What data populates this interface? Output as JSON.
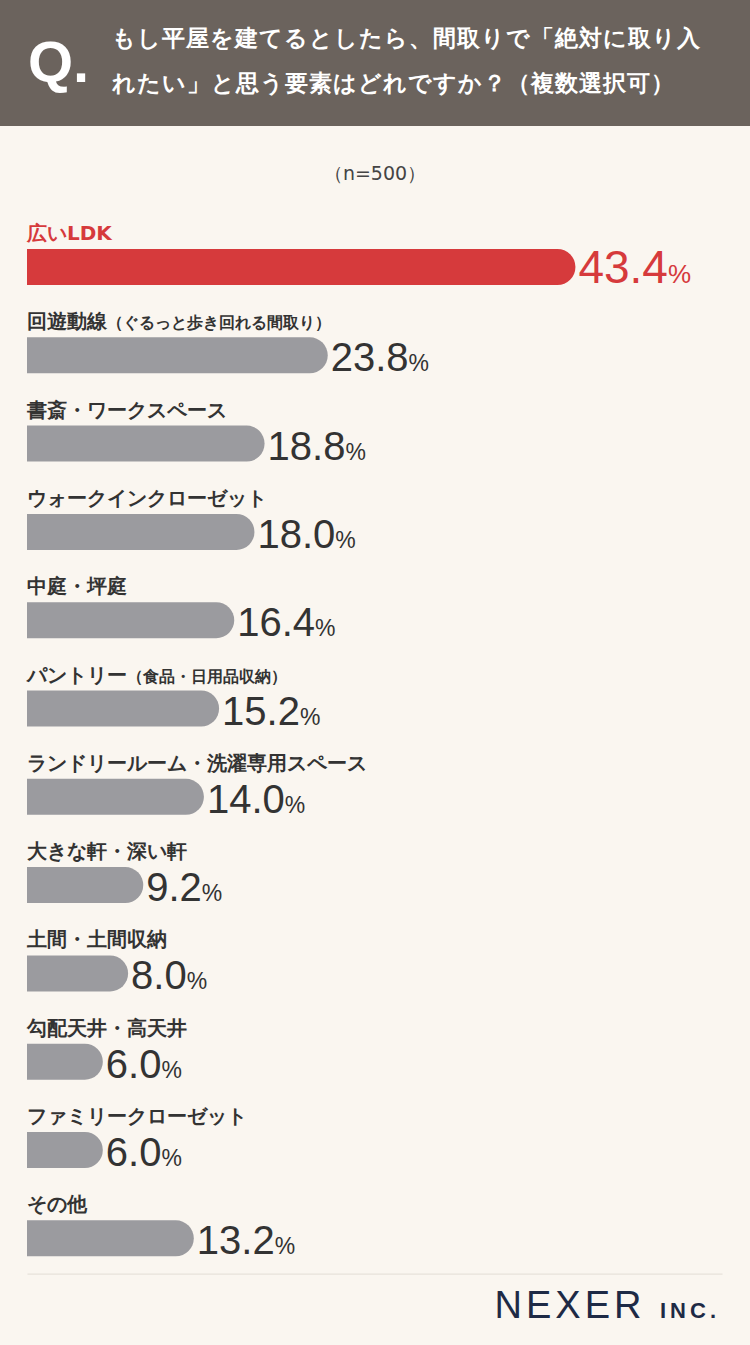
{
  "chart_data": {
    "type": "bar",
    "orientation": "horizontal",
    "title": "もし平屋を建てるとしたら、間取りで「絶対に取り入れたい」と思う要素はどれですか？（複数選択可）",
    "subtitle": "（n=500）",
    "annotations": [
      "Q.",
      "NEXER INC."
    ],
    "categories": [
      "広いLDK",
      "回遊動線（ぐるっと歩き回れる間取り）",
      "書斎・ワークスペース",
      "ウォークインクローゼット",
      "中庭・坪庭",
      "パントリー（食品・日用品収納）",
      "ランドリールーム・洗濯専用スペース",
      "大きな軒・深い軒",
      "土間・土間収納",
      "勾配天井・高天井",
      "ファミリークローゼット",
      "その他"
    ],
    "values": [
      43.4,
      23.8,
      18.8,
      18.0,
      16.4,
      15.2,
      14.0,
      9.2,
      8.0,
      6.0,
      6.0,
      13.2
    ],
    "value_labels": [
      "43.4%",
      "23.8%",
      "18.8%",
      "18.0%",
      "16.4%",
      "15.2%",
      "14.0%",
      "9.2%",
      "8.0%",
      "6.0%",
      "6.0%",
      "13.2%"
    ],
    "colors": [
      "#d63a3c",
      "#9b9b9f",
      "#9b9b9f",
      "#9b9b9f",
      "#9b9b9f",
      "#9b9b9f",
      "#9b9b9f",
      "#9b9b9f",
      "#9b9b9f",
      "#9b9b9f",
      "#9b9b9f",
      "#9b9b9f"
    ],
    "xlim": [
      0,
      55
    ],
    "xticks": [],
    "tick_labels": false,
    "grid": false,
    "data_labels": true
  }
}
